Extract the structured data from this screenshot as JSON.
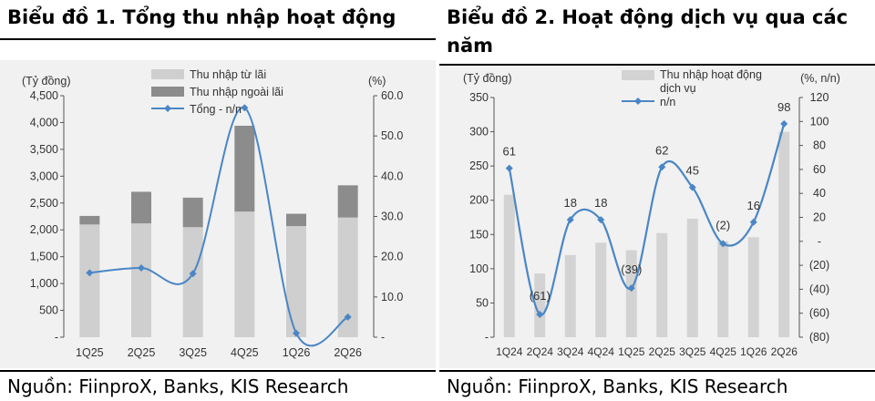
{
  "colors": {
    "interest_bar": "#cfcfcf",
    "non_interest_bar": "#8c8c8c",
    "total_line": "#4a86c5",
    "service_bar": "#d3d3d3",
    "chart_bg": "#f1f1f1"
  },
  "chart_data": [
    {
      "type": "bar",
      "title": "Biểu đồ 1. Tổng thu nhập hoạt động",
      "source": "Nguồn: FiinproX, Banks, KIS Research",
      "left_unit": "(Tỷ đồng)",
      "right_unit": "(%)",
      "categories": [
        "1Q25",
        "2Q25",
        "3Q25",
        "4Q25",
        "1Q26",
        "2Q26"
      ],
      "left_ticks": [
        "-",
        "500",
        "1,000",
        "1,500",
        "2,000",
        "2,500",
        "3,000",
        "3,500",
        "4,000",
        "4,500"
      ],
      "right_ticks": [
        "-",
        "10.0",
        "20.0",
        "30.0",
        "40.0",
        "50.0",
        "60.0"
      ],
      "ylim_left": [
        0,
        4500
      ],
      "ylim_right": [
        0,
        60
      ],
      "stacked": true,
      "series": [
        {
          "name": "Thu nhập từ lãi",
          "kind": "bar",
          "axis": "left",
          "values": [
            2100,
            2120,
            2050,
            2340,
            2070,
            2230
          ]
        },
        {
          "name": "Thu nhập ngoài lãi",
          "kind": "bar",
          "axis": "left",
          "values": [
            160,
            590,
            550,
            1600,
            230,
            600
          ]
        },
        {
          "name": "Tổng - n/n",
          "kind": "line",
          "axis": "right",
          "smooth": true,
          "values": [
            16.0,
            17.2,
            15.8,
            57.0,
            1.0,
            5.0
          ]
        }
      ],
      "legend": "top-center",
      "grid": false
    },
    {
      "type": "bar",
      "title": "Biểu đồ 2. Hoạt động dịch vụ qua các năm",
      "source": "Nguồn: FiinproX, Banks, KIS Research",
      "left_unit": "(Tỷ đồng)",
      "right_unit": "(%, n/n)",
      "categories": [
        "1Q24",
        "2Q24",
        "3Q24",
        "4Q24",
        "1Q25",
        "2Q25",
        "3Q25",
        "4Q25",
        "1Q26",
        "2Q26"
      ],
      "left_ticks": [
        "-",
        "50",
        "100",
        "150",
        "200",
        "250",
        "300",
        "350"
      ],
      "right_ticks": [
        "(80)",
        "(60)",
        "(40)",
        "(20)",
        "-",
        "20",
        "40",
        "60",
        "80",
        "100",
        "120"
      ],
      "ylim_left": [
        0,
        350
      ],
      "ylim_right": [
        -80,
        120
      ],
      "series": [
        {
          "name": "Thu nhập hoạt động dịch vụ",
          "kind": "bar",
          "axis": "left",
          "values": [
            208,
            93,
            120,
            138,
            127,
            152,
            173,
            140,
            146,
            300
          ]
        },
        {
          "name": "n/n",
          "kind": "line",
          "axis": "right",
          "smooth": true,
          "values": [
            61,
            -61,
            18,
            18,
            -39,
            62,
            45,
            -2,
            16,
            98
          ],
          "labels": [
            "61",
            "(61)",
            "18",
            "18",
            "(39)",
            "62",
            "45",
            "(2)",
            "16",
            "98"
          ]
        }
      ],
      "legend": "top-center",
      "grid": false
    }
  ]
}
